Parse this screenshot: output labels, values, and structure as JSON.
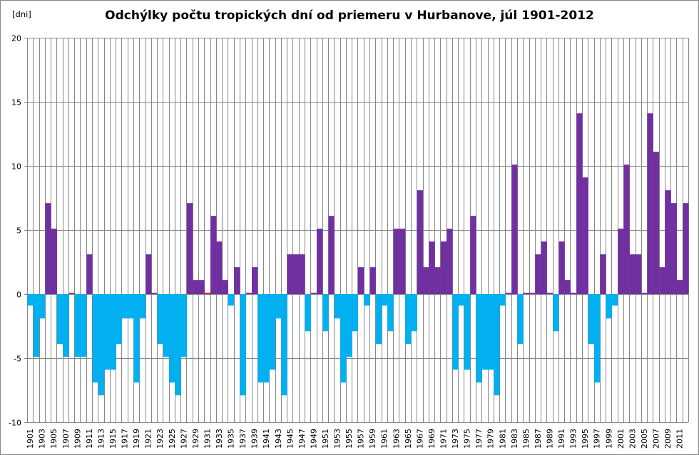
{
  "chart_data": {
    "type": "bar",
    "title": "Odchýlky počtu tropických dní od priemeru v Hurbanove,  júl 1901-2012",
    "ylabel": "[dni]",
    "xlabel": "",
    "ylim": [
      -10,
      20
    ],
    "yticks": [
      -10,
      -5,
      0,
      5,
      10,
      15,
      20
    ],
    "grid": true,
    "legend": "none",
    "x_start": 1901,
    "x_end": 2012,
    "x_tick_step": 2,
    "colors": {
      "positive": "#7030A0",
      "negative": "#00B0F0",
      "highlight": "#FF0000",
      "grid": "#868686"
    },
    "highlight_year": 1931,
    "values": [
      -0.9,
      -4.9,
      -1.9,
      7.1,
      5.1,
      -3.9,
      -4.9,
      0.1,
      -4.9,
      -4.9,
      3.1,
      -6.9,
      -7.9,
      -5.9,
      -5.9,
      -3.9,
      -1.9,
      -1.9,
      -6.9,
      -1.9,
      3.1,
      0.1,
      -3.9,
      -4.9,
      -6.9,
      -7.9,
      -4.9,
      7.1,
      1.1,
      1.1,
      0.1,
      6.1,
      4.1,
      1.1,
      -0.9,
      2.1,
      -7.9,
      0.1,
      2.1,
      -6.9,
      -6.9,
      -5.9,
      -1.9,
      -7.9,
      3.1,
      3.1,
      3.1,
      -2.9,
      0.1,
      5.1,
      -2.9,
      6.1,
      -1.9,
      -6.9,
      -4.9,
      -2.9,
      2.1,
      -0.9,
      2.1,
      -3.9,
      -0.9,
      -2.9,
      5.1,
      5.1,
      -3.9,
      -2.9,
      8.1,
      2.1,
      4.1,
      2.1,
      4.1,
      5.1,
      -5.9,
      -0.9,
      -5.9,
      6.1,
      -6.9,
      -5.9,
      -5.9,
      -7.9,
      -0.9,
      0.1,
      10.1,
      -3.9,
      0.1,
      0.1,
      3.1,
      4.1,
      0.1,
      -2.9,
      4.1,
      1.1,
      0.1,
      14.1,
      9.1,
      -3.9,
      -6.9,
      3.1,
      -1.9,
      -0.9,
      5.1,
      10.1,
      3.1,
      3.1,
      0.1,
      14.1,
      11.1,
      2.1,
      8.1,
      7.1,
      1.1,
      7.1
    ]
  }
}
